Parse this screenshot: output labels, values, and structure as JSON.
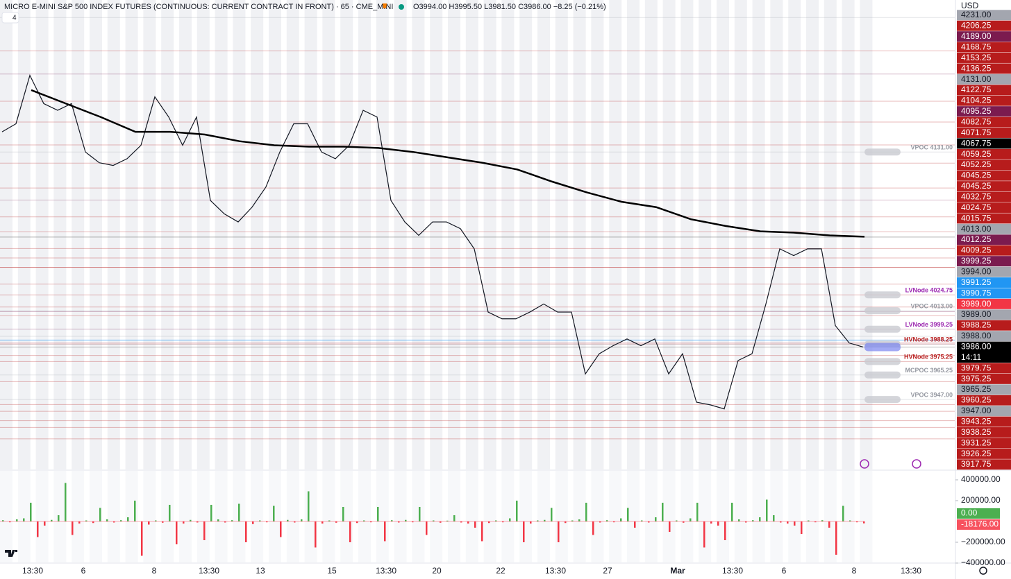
{
  "header": {
    "symbol": "MICRO E-MINI S&P 500 INDEX FUTURES (CONTINUOUS: CURRENT CONTRACT IN FRONT) · 65 · CME_MINI",
    "ohlc": "O3994.00 H3995.50 L3981.50 C3986.00 −8.25 (−0.21%)",
    "indicators": "4",
    "currency": "USD"
  },
  "chart_data": {
    "type": "line",
    "ylim": [
      3895,
      4244
    ],
    "line_color": "#131722",
    "vwap_color": "#000000",
    "closes": [
      4146,
      4152,
      4188,
      4167,
      4162,
      4167,
      4131,
      4123,
      4121,
      4126,
      4136,
      4172,
      4157,
      4136,
      4157,
      4095,
      4085,
      4079,
      4090,
      4105,
      4131,
      4152,
      4152,
      4131,
      4126,
      4136,
      4162,
      4157,
      4095,
      4079,
      4069,
      4079,
      4079,
      4074,
      4059,
      4012,
      4007,
      4007,
      4012,
      4018,
      4012,
      4012,
      3966,
      3981,
      3987,
      3992,
      3987,
      3992,
      3966,
      3981,
      3945,
      3943,
      3940,
      3976,
      3981,
      4018,
      4059,
      4054,
      4059,
      4059,
      4002,
      3989,
      3986
    ],
    "vwap": [
      4177,
      4167,
      4157,
      4146,
      4146,
      4144,
      4139,
      4136,
      4135,
      4135,
      4134,
      4131,
      4127,
      4123,
      4118,
      4109,
      4101,
      4094,
      4090,
      4081,
      4076,
      4072,
      4071,
      4069,
      4068
    ],
    "price_levels": [
      {
        "value": 4231,
        "label": "4231.00",
        "color": "#a3a6af"
      },
      {
        "value": 4206.25,
        "label": "4206.25",
        "color": "#b71c1c"
      },
      {
        "value": 4189,
        "label": "4189.00",
        "color": "#7b1b4f"
      },
      {
        "value": 4168.75,
        "label": "4168.75",
        "color": "#b71c1c"
      },
      {
        "value": 4153.25,
        "label": "4153.25",
        "color": "#b71c1c"
      },
      {
        "value": 4136.25,
        "label": "4136.25",
        "color": "#b71c1c"
      },
      {
        "value": 4131,
        "label": "4131.00",
        "color": "#a3a6af"
      },
      {
        "value": 4122.75,
        "label": "4122.75",
        "color": "#b71c1c"
      },
      {
        "value": 4104.25,
        "label": "4104.25",
        "color": "#b71c1c"
      },
      {
        "value": 4095.25,
        "label": "4095.25",
        "color": "#7b1b4f"
      },
      {
        "value": 4082.75,
        "label": "4082.75",
        "color": "#b71c1c"
      },
      {
        "value": 4071.75,
        "label": "4071.75",
        "color": "#b71c1c"
      },
      {
        "value": 4067.75,
        "label": "4067.75",
        "color": "#000000"
      },
      {
        "value": 4059.25,
        "label": "4059.25",
        "color": "#b71c1c"
      },
      {
        "value": 4052.25,
        "label": "4052.25",
        "color": "#b71c1c"
      },
      {
        "value": 4045.25,
        "label": "4045.25",
        "color": "#b71c1c"
      },
      {
        "value": 4045.25,
        "label": "4045.25",
        "color": "#b71c1c"
      },
      {
        "value": 4032.75,
        "label": "4032.75",
        "color": "#b71c1c"
      },
      {
        "value": 4024.75,
        "label": "4024.75",
        "color": "#b71c1c"
      },
      {
        "value": 4015.75,
        "label": "4015.75",
        "color": "#b71c1c"
      },
      {
        "value": 4013,
        "label": "4013.00",
        "color": "#a3a6af"
      },
      {
        "value": 4012.25,
        "label": "4012.25",
        "color": "#7b1b4f"
      },
      {
        "value": 4009.25,
        "label": "4009.25",
        "color": "#b71c1c"
      },
      {
        "value": 3999.25,
        "label": "3999.25",
        "color": "#7b1b4f"
      },
      {
        "value": 3994,
        "label": "3994.00",
        "color": "#a3a6af"
      },
      {
        "value": 3991.25,
        "label": "3991.25",
        "color": "#2196f3"
      },
      {
        "value": 3990.75,
        "label": "3990.75",
        "color": "#2196f3"
      },
      {
        "value": 3989,
        "label": "3989.00",
        "color": "#f23645"
      },
      {
        "value": 3989,
        "label": "3989.00",
        "color": "#a3a6af"
      },
      {
        "value": 3988.25,
        "label": "3988.25",
        "color": "#b71c1c"
      },
      {
        "value": 3988,
        "label": "3988.00",
        "color": "#a3a6af"
      },
      {
        "value": 3986,
        "label": "3986.00",
        "color": "#000000",
        "countdown": "14:11"
      },
      {
        "value": 3979.75,
        "label": "3979.75",
        "color": "#b71c1c"
      },
      {
        "value": 3975.25,
        "label": "3975.25",
        "color": "#b71c1c"
      },
      {
        "value": 3965.25,
        "label": "3965.25",
        "color": "#a3a6af"
      },
      {
        "value": 3960.25,
        "label": "3960.25",
        "color": "#b71c1c"
      },
      {
        "value": 3947,
        "label": "3947.00",
        "color": "#a3a6af"
      },
      {
        "value": 3943.25,
        "label": "3943.25",
        "color": "#b71c1c"
      },
      {
        "value": 3938.25,
        "label": "3938.25",
        "color": "#b71c1c"
      },
      {
        "value": 3931.25,
        "label": "3931.25",
        "color": "#b71c1c"
      },
      {
        "value": 3926.25,
        "label": "3926.25",
        "color": "#b71c1c"
      },
      {
        "value": 3917.75,
        "label": "3917.75",
        "color": "#b71c1c"
      }
    ],
    "annotations": [
      {
        "text": "VPOC 4131.00",
        "value": 4131,
        "color": "#9598a1"
      },
      {
        "text": "LVNode 4024.75",
        "value": 4024.75,
        "color": "#9c27b0"
      },
      {
        "text": "VPOC 4013.00",
        "value": 4013,
        "color": "#9598a1"
      },
      {
        "text": "LVNode 3999.25",
        "value": 3999.25,
        "color": "#9c27b0"
      },
      {
        "text": "HVNode 3988.25",
        "value": 3988.25,
        "color": "#b71c1c"
      },
      {
        "text": "HVNode 3975.25",
        "value": 3975.25,
        "color": "#b71c1c"
      },
      {
        "text": "MCPOC 3965.25",
        "value": 3965.25,
        "color": "#9598a1"
      },
      {
        "text": "VPOC 3947.00",
        "value": 3947,
        "color": "#9598a1"
      }
    ],
    "time_labels": [
      "13:30",
      "6",
      "8",
      "13:30",
      "13",
      "15",
      "13:30",
      "20",
      "22",
      "13:30",
      "27",
      "Mar",
      "13:30",
      "6",
      "8",
      "13:30"
    ]
  },
  "volume_delta": {
    "type": "bar",
    "ylim": [
      -400000,
      480000
    ],
    "yticks": [
      {
        "value": 400000,
        "label": "400000.00"
      },
      {
        "value": 200000,
        "label": "200000.00"
      },
      {
        "value": -200000,
        "label": "−200000.00"
      },
      {
        "value": -400000,
        "label": "−400000.00"
      }
    ],
    "up_color": "#4caf50",
    "down_color": "#f23645",
    "badges": [
      {
        "value": 0,
        "label": "0.00",
        "color": "#4caf50"
      },
      {
        "value": -18176,
        "label": "-18176.00",
        "color": "#f7525f"
      }
    ],
    "values": [
      12000,
      -8000,
      20000,
      30000,
      180000,
      -150000,
      -40000,
      15000,
      60000,
      370000,
      -130000,
      -20000,
      10000,
      -15000,
      130000,
      20000,
      -10000,
      12000,
      40000,
      200000,
      -330000,
      -30000,
      10000,
      -12000,
      160000,
      -220000,
      -20000,
      15000,
      -10000,
      -180000,
      160000,
      20000,
      -10000,
      12000,
      170000,
      -200000,
      -25000,
      10000,
      -8000,
      150000,
      -150000,
      15000,
      -10000,
      20000,
      290000,
      -250000,
      -20000,
      10000,
      -12000,
      140000,
      -200000,
      -15000,
      10000,
      -8000,
      140000,
      -190000,
      12000,
      -10000,
      15000,
      -8000,
      140000,
      -130000,
      10000,
      -12000,
      8000,
      60000,
      -10000,
      -20000,
      -60000,
      -190000,
      -15000,
      10000,
      -8000,
      30000,
      200000,
      -200000,
      -20000,
      10000,
      15000,
      130000,
      -200000,
      -15000,
      10000,
      20000,
      180000,
      -130000,
      -10000,
      12000,
      -8000,
      30000,
      130000,
      -60000,
      10000,
      -10000,
      40000,
      180000,
      -100000,
      10000,
      -12000,
      30000,
      180000,
      -250000,
      -20000,
      -40000,
      -180000,
      180000,
      20000,
      -10000,
      12000,
      40000,
      210000,
      60000,
      -10000,
      -20000,
      -40000,
      -120000,
      10000,
      -8000,
      12000,
      -60000,
      -320000,
      150000,
      10000,
      -8000,
      -18176
    ]
  }
}
